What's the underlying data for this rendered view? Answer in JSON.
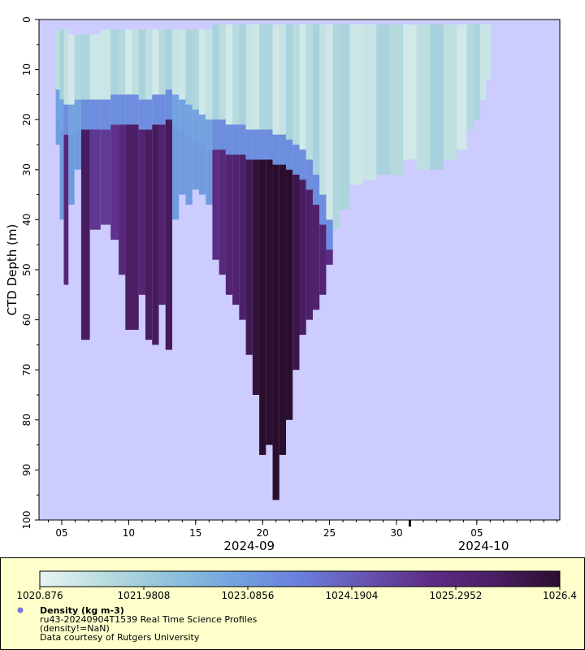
{
  "chart_data": {
    "type": "heatmap",
    "title": "Density (kg m-3)",
    "ylabel": "CTD Depth (m)",
    "xlabel": "",
    "ylim": [
      100,
      0
    ],
    "xlim_days": [
      3.3,
      42.2
    ],
    "y_ticks": [
      "0",
      "10",
      "20",
      "30",
      "40",
      "50",
      "60",
      "70",
      "80",
      "90",
      "100"
    ],
    "x_ticks": [
      {
        "label": "05",
        "day": 5
      },
      {
        "label": "10",
        "day": 10
      },
      {
        "label": "15",
        "day": 15
      },
      {
        "label": "20",
        "day": 20
      },
      {
        "label": "25",
        "day": 25
      },
      {
        "label": "30",
        "day": 30
      },
      {
        "label": "05",
        "day": 36
      }
    ],
    "x_major": [
      {
        "label": "2024-09",
        "day": 19
      },
      {
        "label": "2024-10",
        "day": 36.5
      }
    ],
    "month_boundary_day": 31,
    "colorbar": {
      "min": 1020.876,
      "max": 1026.4,
      "tick_labels": [
        "1020.876",
        "1021.9808",
        "1023.0856",
        "1024.1904",
        "1025.2952",
        "1026.4"
      ],
      "stops": [
        "#e8f4f2",
        "#b9ddde",
        "#8fc2dc",
        "#72a3e0",
        "#6a7fdc",
        "#6654b0",
        "#5e2c86",
        "#4a1d64",
        "#2b0e2e"
      ]
    },
    "depth_profile": {
      "days": [
        4.7,
        5.0,
        5.3,
        5.7,
        6.2,
        6.7,
        7.5,
        8.3,
        9.0,
        9.5,
        10.0,
        10.5,
        11.0,
        11.5,
        12.0,
        12.5,
        13.0,
        13.5,
        14.0,
        14.5,
        15.0,
        15.5,
        16.0,
        16.5,
        17.0,
        17.5,
        18.0,
        18.5,
        19.0,
        19.5,
        20.0,
        20.5,
        21.0,
        21.5,
        22.0,
        22.5,
        23.0,
        23.5,
        24.0,
        24.5,
        25.0,
        25.5,
        26.0,
        27.0,
        28.0,
        29.0,
        30.0,
        31.0,
        32.0,
        33.0,
        34.0,
        35.0,
        35.5,
        36.0,
        36.5,
        36.9
      ],
      "max_depth_m": [
        25,
        40,
        53,
        37,
        30,
        64,
        42,
        41,
        44,
        51,
        62,
        62,
        55,
        64,
        65,
        57,
        66,
        40,
        35,
        37,
        34,
        35,
        37,
        48,
        51,
        55,
        57,
        60,
        67,
        75,
        87,
        85,
        96,
        87,
        80,
        70,
        63,
        60,
        58,
        55,
        49,
        42,
        38,
        33,
        32,
        31,
        31,
        28,
        30,
        30,
        28,
        26,
        22,
        20,
        16,
        12
      ],
      "top_band_m": [
        2,
        2,
        2,
        3,
        3,
        3,
        3,
        2,
        2,
        2,
        2,
        2,
        2,
        2,
        2,
        2,
        2,
        2,
        2,
        2,
        2,
        2,
        2,
        1,
        1,
        1,
        1,
        1,
        1,
        1,
        1,
        1,
        1,
        1,
        1,
        1,
        1,
        1,
        1,
        1,
        1,
        1,
        1,
        1,
        1,
        1,
        1,
        1,
        1,
        1,
        1,
        1,
        1,
        1,
        1,
        1
      ],
      "mixed_layer_m": [
        14,
        16,
        17,
        17,
        16,
        16,
        16,
        16,
        15,
        15,
        15,
        15,
        16,
        16,
        15,
        15,
        14,
        15,
        16,
        17,
        18,
        19,
        20,
        20,
        20,
        21,
        21,
        21,
        22,
        22,
        22,
        22,
        23,
        23,
        24,
        25,
        26,
        28,
        31,
        35,
        40,
        45,
        99,
        99,
        99,
        99,
        99,
        99,
        99,
        99,
        99,
        99,
        99,
        99,
        99,
        99
      ]
    }
  },
  "legend": {
    "marker_color": "#7777dd",
    "variable": "Density (kg m-3)",
    "dataset": "ru43-20240904T1539 Real Time Science Profiles",
    "constraint": "(density!=NaN)",
    "credit": "Data courtesy of Rutgers University"
  },
  "colors": {
    "plot_background": "#ccccff",
    "legend_background": "#ffffcc"
  }
}
